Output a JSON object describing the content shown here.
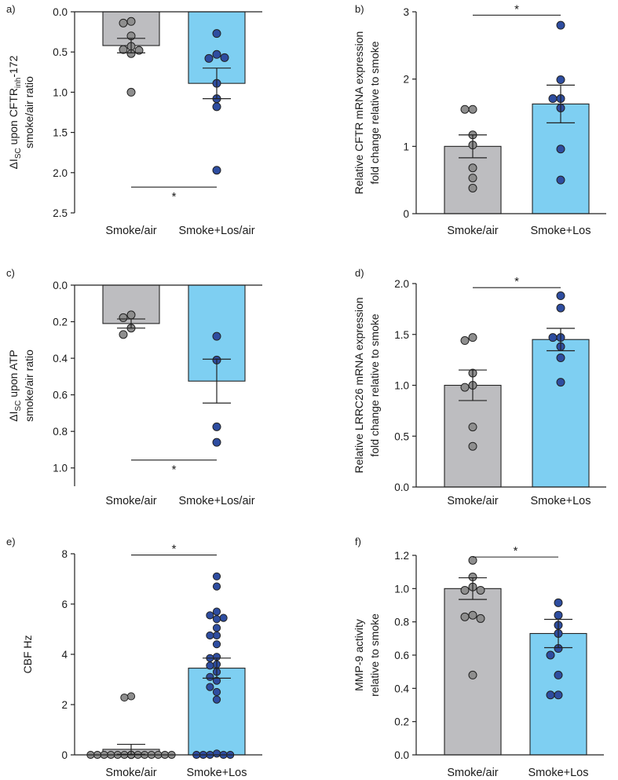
{
  "colors": {
    "control_bar": "#BDBDC0",
    "treatment_bar": "#7ECFF2",
    "control_dot": "#8E8E8E",
    "treatment_dot": "#2E4DA0"
  },
  "chart_data": [
    {
      "panel": "a)",
      "type": "bar",
      "inverted": true,
      "ylabel_lines": [
        "ΔI_SC upon CFTR_inh-172",
        "smoke/air ratio"
      ],
      "ylim": [
        0,
        2.5
      ],
      "yticks": [
        0.0,
        0.5,
        1.0,
        1.5,
        2.0,
        2.5
      ],
      "tick_decimals": 1,
      "categories": [
        "Smoke/air",
        "Smoke+Los/air"
      ],
      "values": [
        0.42,
        0.89
      ],
      "sem": [
        0.09,
        0.19
      ],
      "points": [
        [
          0.12,
          0.14,
          0.3,
          0.43,
          0.47,
          0.48,
          0.52,
          1.0
        ],
        [
          0.27,
          0.53,
          0.58,
          0.57,
          0.89,
          1.08,
          1.18,
          1.97
        ]
      ],
      "significance": {
        "label": "*",
        "between": [
          0,
          1
        ],
        "y": 2.18
      }
    },
    {
      "panel": "b)",
      "type": "bar",
      "inverted": false,
      "ylabel_lines": [
        "Relative CFTR mRNA expression",
        "fold change relative to smoke"
      ],
      "ylim": [
        0,
        3
      ],
      "yticks": [
        0,
        1,
        2,
        3
      ],
      "tick_decimals": 0,
      "categories": [
        "Smoke/air",
        "Smoke+Los"
      ],
      "values": [
        1.0,
        1.63
      ],
      "sem": [
        0.17,
        0.28
      ],
      "points": [
        [
          1.55,
          1.55,
          1.17,
          1.02,
          0.68,
          0.53,
          0.38
        ],
        [
          2.8,
          1.99,
          1.71,
          1.71,
          1.57,
          0.96,
          0.5
        ]
      ],
      "significance": {
        "label": "*",
        "between": [
          0,
          1
        ],
        "y": 2.95
      }
    },
    {
      "panel": "c)",
      "type": "bar",
      "inverted": true,
      "ylabel_lines": [
        "ΔI_SC upon ATP",
        "smoke/air ratio"
      ],
      "ylim": [
        0,
        1.1
      ],
      "yticks": [
        0.0,
        0.2,
        0.4,
        0.6,
        0.8,
        1.0
      ],
      "tick_decimals": 1,
      "categories": [
        "Smoke/air",
        "Smoke+Los/air"
      ],
      "values": [
        0.21,
        0.525
      ],
      "sem": [
        0.025,
        0.12
      ],
      "points": [
        [
          0.163,
          0.178,
          0.235,
          0.27
        ],
        [
          0.28,
          0.41,
          0.775,
          0.86
        ]
      ],
      "significance": {
        "label": "*",
        "between": [
          0,
          1
        ],
        "y": 0.957
      }
    },
    {
      "panel": "d)",
      "type": "bar",
      "inverted": false,
      "ylabel_lines": [
        "Relative LRRC26 mRNA expression",
        "fold change relative to smoke"
      ],
      "ylim": [
        0,
        2.0
      ],
      "yticks": [
        0.0,
        0.5,
        1.0,
        1.5,
        2.0
      ],
      "tick_decimals": 1,
      "categories": [
        "Smoke/air",
        "Smoke+Los"
      ],
      "values": [
        1.0,
        1.45
      ],
      "sem": [
        0.15,
        0.11
      ],
      "points": [
        [
          1.47,
          1.44,
          1.12,
          1.0,
          0.98,
          0.59,
          0.4
        ],
        [
          1.88,
          1.76,
          1.47,
          1.47,
          1.38,
          1.27,
          1.03
        ]
      ],
      "significance": {
        "label": "*",
        "between": [
          0,
          1
        ],
        "y": 1.96
      }
    },
    {
      "panel": "e)",
      "type": "bar",
      "inverted": false,
      "ylabel_lines": [
        "CBF Hz"
      ],
      "ylim": [
        0,
        8
      ],
      "yticks": [
        0,
        2,
        4,
        6,
        8
      ],
      "tick_decimals": 0,
      "categories": [
        "Smoke/air",
        "Smoke+Los"
      ],
      "values": [
        0.22,
        3.45
      ],
      "sem": [
        0.2,
        0.4
      ],
      "points": [
        [
          2.33,
          2.28,
          0,
          0,
          0,
          0,
          0,
          0,
          0,
          0,
          0,
          0,
          0,
          0,
          0,
          0,
          0,
          0,
          0,
          0,
          0,
          0,
          0,
          0
        ],
        [
          7.1,
          6.7,
          5.7,
          5.55,
          5.45,
          5.4,
          5.05,
          4.75,
          4.75,
          4.4,
          3.9,
          3.85,
          3.6,
          3.55,
          3.3,
          3.1,
          2.95,
          2.7,
          2.5,
          2.2,
          0.05,
          0.0,
          0.0,
          0.0,
          0.0,
          0.0
        ]
      ],
      "significance": {
        "label": "*",
        "between": [
          0,
          1
        ],
        "y": 7.95
      }
    },
    {
      "panel": "f)",
      "type": "bar",
      "inverted": false,
      "ylabel_lines": [
        "MMP-9 activity",
        "relative to smoke"
      ],
      "ylim": [
        0,
        1.2
      ],
      "yticks": [
        0.0,
        0.2,
        0.4,
        0.6,
        0.8,
        1.0,
        1.2
      ],
      "tick_decimals": 1,
      "categories": [
        "Smoke/air",
        "Smoke+Los"
      ],
      "values": [
        1.0,
        0.73
      ],
      "sem": [
        0.065,
        0.085
      ],
      "points": [
        [
          1.17,
          1.07,
          1.01,
          0.99,
          0.99,
          0.84,
          0.83,
          0.82,
          0.48
        ],
        [
          0.915,
          0.84,
          0.78,
          0.73,
          0.64,
          0.6,
          0.48,
          0.36,
          0.36
        ]
      ],
      "significance": {
        "label": "*",
        "between": [
          0,
          1
        ],
        "y": 1.19
      }
    }
  ]
}
